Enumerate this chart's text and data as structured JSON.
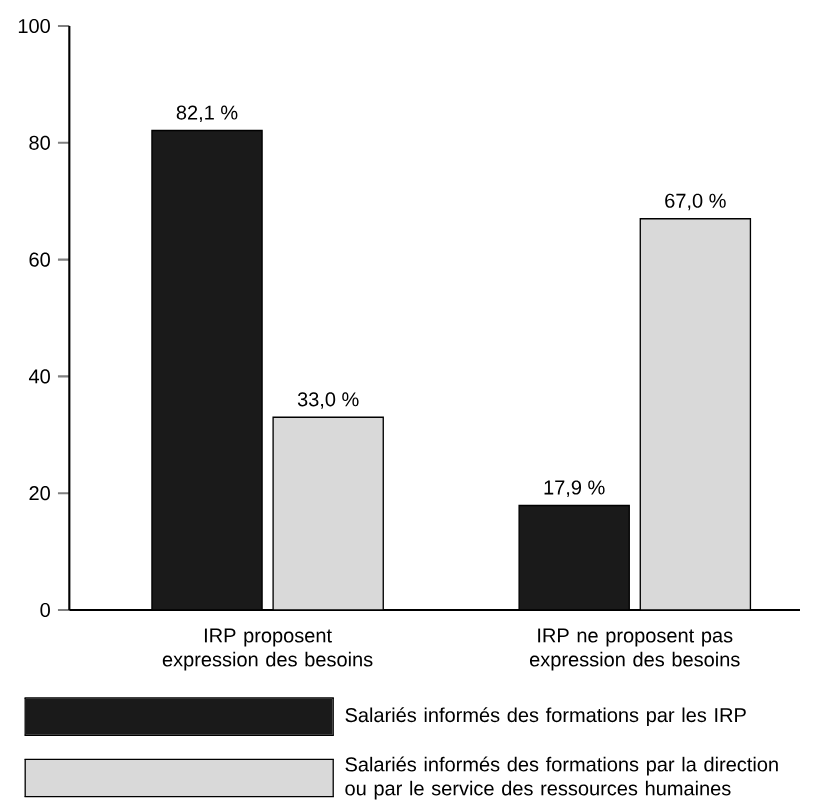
{
  "chart_data": {
    "type": "bar",
    "categories": [
      "IRP proposent expression des besoins",
      "IRP ne proposent pas expression des besoins"
    ],
    "series": [
      {
        "name": "Salariés informés des formations par les IRP",
        "color": "#1a1a1a",
        "values": [
          82.1,
          17.9
        ],
        "value_labels": [
          "82,1 %",
          "17,9 %"
        ]
      },
      {
        "name": "Salariés informés des formations par la direction ou par le service des ressources humaines",
        "color": "#d9d9d9",
        "values": [
          33.0,
          67.0
        ],
        "value_labels": [
          "33,0 %",
          "67,0 %"
        ]
      }
    ],
    "ylim": [
      0,
      100
    ],
    "yticks": [
      0,
      20,
      40,
      60,
      80,
      100
    ],
    "legend": "bottom"
  }
}
